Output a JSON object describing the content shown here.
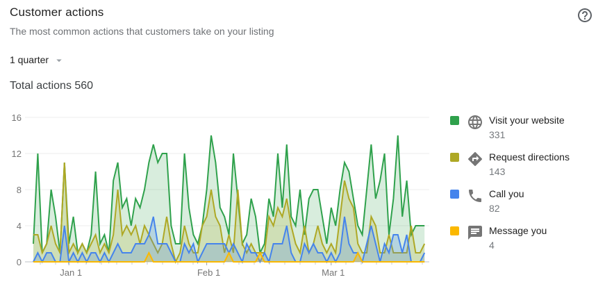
{
  "page": {
    "title": "Customer actions",
    "subtitle": "The most common actions that customers take on your listing",
    "period_selector": "1 quarter",
    "total_label": "Total actions 560"
  },
  "legend": {
    "items": [
      {
        "label": "Visit your website",
        "value": "331",
        "color": "#2fa14c",
        "icon": "globe-icon"
      },
      {
        "label": "Request directions",
        "value": "143",
        "color": "#aea825",
        "icon": "directions-icon"
      },
      {
        "label": "Call you",
        "value": "82",
        "color": "#4584ec",
        "icon": "phone-icon"
      },
      {
        "label": "Message you",
        "value": "4",
        "color": "#fbb800",
        "icon": "message-icon"
      }
    ]
  },
  "chart_data": {
    "type": "area",
    "title": "Customer actions",
    "xlabel": "",
    "ylabel": "",
    "ylim": [
      0,
      16
    ],
    "y_ticks": [
      0,
      4,
      8,
      12,
      16
    ],
    "grid": true,
    "legend_position": "right",
    "x_unit": "day",
    "days": 89,
    "x_tick_labels": [
      {
        "label": "Jan 1",
        "day": 8
      },
      {
        "label": "Feb 1",
        "day": 39
      },
      {
        "label": "Mar 1",
        "day": 67
      }
    ],
    "series": [
      {
        "name": "Visit your website",
        "total": 331,
        "color": "#2fa14c",
        "fill": "rgba(47,161,76,0.19)",
        "values": [
          2,
          12,
          1,
          2,
          8,
          5,
          1,
          11,
          2,
          5,
          1,
          2,
          1,
          3,
          10,
          2,
          3,
          1,
          9,
          11,
          6,
          7,
          4,
          7,
          6,
          8,
          11,
          13,
          11,
          12,
          12,
          4,
          2,
          2,
          12,
          6,
          3,
          2,
          4,
          8,
          14,
          11,
          6,
          5,
          3,
          12,
          7,
          2,
          3,
          7,
          5,
          1,
          2,
          7,
          5,
          12,
          6,
          13,
          5,
          4,
          8,
          3,
          7,
          8,
          8,
          5,
          2,
          6,
          4,
          8,
          11,
          10,
          7,
          4,
          3,
          8,
          13,
          7,
          9,
          12,
          3,
          7,
          14,
          5,
          9,
          3,
          4,
          4,
          4
        ]
      },
      {
        "name": "Request directions",
        "total": 143,
        "color": "#aea825",
        "fill": "rgba(174,168,37,0.21)",
        "values": [
          3,
          3,
          1,
          2,
          4,
          2,
          1,
          11,
          1,
          2,
          1,
          2,
          1,
          2,
          3,
          1,
          2,
          1,
          3,
          8,
          3,
          4,
          3,
          4,
          2,
          4,
          3,
          2,
          1,
          2,
          5,
          2,
          0,
          1,
          4,
          2,
          1,
          1,
          4,
          5,
          8,
          5,
          4,
          1,
          3,
          1,
          8,
          2,
          1,
          2,
          1,
          1,
          1,
          5,
          4,
          6,
          5,
          7,
          4,
          2,
          1,
          4,
          1,
          2,
          4,
          2,
          1,
          2,
          1,
          5,
          9,
          7,
          6,
          2,
          1,
          1,
          5,
          4,
          1,
          1,
          3,
          1,
          1,
          1,
          1,
          4,
          1,
          1,
          2
        ]
      },
      {
        "name": "Call you",
        "total": 82,
        "color": "#4584ec",
        "fill": "rgba(69,132,236,0.24)",
        "values": [
          0,
          1,
          0,
          1,
          1,
          0,
          0,
          4,
          0,
          1,
          0,
          1,
          0,
          1,
          1,
          0,
          1,
          0,
          1,
          2,
          1,
          1,
          1,
          2,
          2,
          2,
          3,
          5,
          2,
          2,
          2,
          1,
          0,
          0,
          2,
          1,
          2,
          0,
          1,
          2,
          2,
          2,
          2,
          2,
          1,
          2,
          1,
          0,
          2,
          1,
          1,
          0,
          1,
          0,
          2,
          2,
          2,
          4,
          1,
          0,
          0,
          2,
          1,
          2,
          1,
          1,
          0,
          1,
          0,
          1,
          5,
          2,
          1,
          1,
          0,
          2,
          4,
          2,
          0,
          2,
          1,
          3,
          3,
          1,
          3,
          0,
          0,
          0,
          1
        ]
      },
      {
        "name": "Message you",
        "total": 4,
        "color": "#fbb800",
        "fill": "rgba(251,184,0,0.30)",
        "values": [
          0,
          0,
          0,
          0,
          0,
          0,
          0,
          0,
          0,
          0,
          0,
          0,
          0,
          0,
          0,
          0,
          0,
          0,
          0,
          0,
          0,
          0,
          0,
          0,
          0,
          0,
          1,
          0,
          0,
          0,
          0,
          0,
          0,
          0,
          0,
          0,
          0,
          0,
          0,
          0,
          0,
          0,
          0,
          0,
          1,
          0,
          0,
          0,
          0,
          0,
          0,
          1,
          0,
          0,
          0,
          0,
          0,
          0,
          0,
          0,
          0,
          0,
          0,
          0,
          0,
          0,
          0,
          0,
          0,
          0,
          0,
          0,
          0,
          1,
          0,
          0,
          0,
          0,
          0,
          0,
          0,
          0,
          0,
          0,
          0,
          0,
          0,
          0,
          0
        ]
      }
    ]
  }
}
